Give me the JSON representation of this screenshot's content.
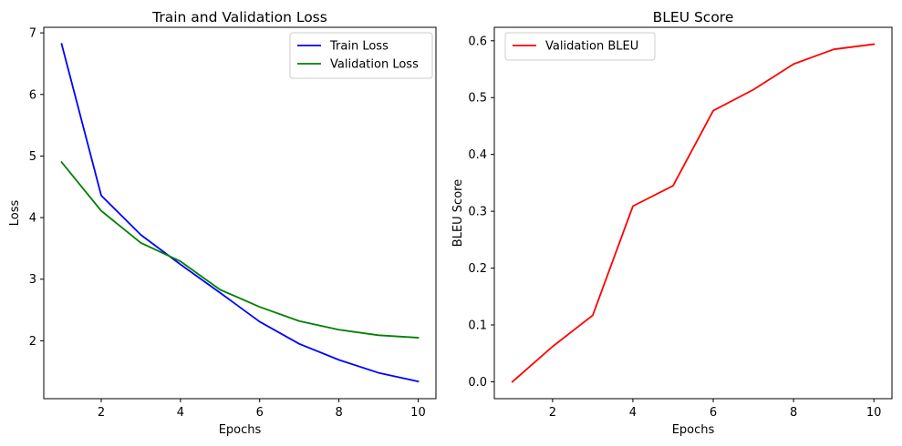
{
  "chart_data": [
    {
      "type": "line",
      "title": "Train and Validation Loss",
      "xlabel": "Epochs",
      "ylabel": "Loss",
      "x": [
        1,
        2,
        3,
        4,
        5,
        6,
        7,
        8,
        9,
        10
      ],
      "xlim": [
        0.55,
        10.45
      ],
      "ylim": [
        1.06,
        7.09
      ],
      "xticks": [
        2,
        4,
        6,
        8,
        10
      ],
      "yticks": [
        2,
        3,
        4,
        5,
        6,
        7
      ],
      "grid": false,
      "legend_position": "upper right",
      "series": [
        {
          "name": "Train Loss",
          "color": "#0000ff",
          "values": [
            6.82,
            4.36,
            3.72,
            3.24,
            2.78,
            2.31,
            1.95,
            1.69,
            1.48,
            1.34
          ]
        },
        {
          "name": "Validation Loss",
          "color": "#008000",
          "values": [
            4.9,
            4.11,
            3.59,
            3.29,
            2.83,
            2.55,
            2.32,
            2.18,
            2.09,
            2.05
          ]
        }
      ]
    },
    {
      "type": "line",
      "title": "BLEU Score",
      "xlabel": "Epochs",
      "ylabel": "BLEU Score",
      "x": [
        1,
        2,
        3,
        4,
        5,
        6,
        7,
        8,
        9,
        10
      ],
      "xlim": [
        0.55,
        10.45
      ],
      "ylim": [
        -0.0297,
        0.6237
      ],
      "xticks": [
        2,
        4,
        6,
        8,
        10
      ],
      "yticks": [
        0.0,
        0.1,
        0.2,
        0.3,
        0.4,
        0.5,
        0.6
      ],
      "ytick_labels": [
        "0.0",
        "0.1",
        "0.2",
        "0.3",
        "0.4",
        "0.5",
        "0.6"
      ],
      "grid": false,
      "legend_position": "upper left",
      "series": [
        {
          "name": "Validation BLEU",
          "color": "#ff0000",
          "values": [
            0.0,
            0.062,
            0.117,
            0.309,
            0.345,
            0.477,
            0.514,
            0.559,
            0.585,
            0.594
          ]
        }
      ]
    }
  ]
}
